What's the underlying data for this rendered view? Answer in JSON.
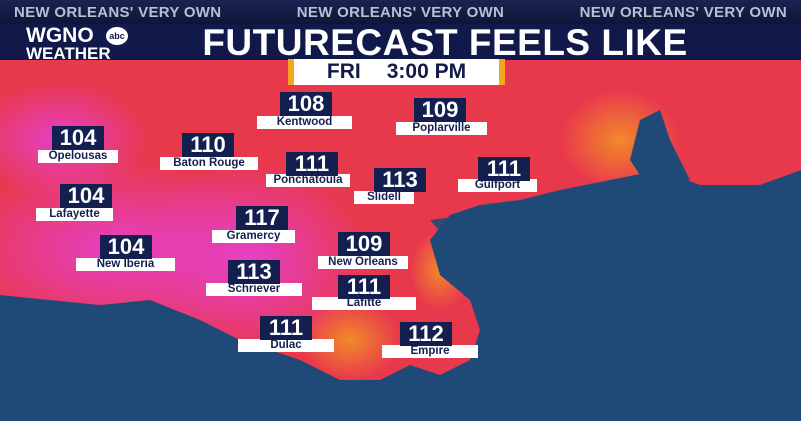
{
  "ticker": [
    "NEW ORLEANS' VERY OWN",
    "NEW ORLEANS' VERY OWN",
    "NEW ORLEANS' VERY OWN"
  ],
  "logo": {
    "top": "WGNO",
    "network": "abc",
    "bottom": "WEATHER"
  },
  "title": "FUTURECAST FEELS LIKE",
  "time": {
    "day": "FRI",
    "time": "3:00 PM"
  },
  "cities": [
    {
      "name": "Opelousas",
      "value": 104
    },
    {
      "name": "Baton Rouge",
      "value": 110
    },
    {
      "name": "Kentwood",
      "value": 108
    },
    {
      "name": "Poplarville",
      "value": 109
    },
    {
      "name": "Ponchatoula",
      "value": 111
    },
    {
      "name": "Slidell",
      "value": 113
    },
    {
      "name": "Gulfport",
      "value": 111
    },
    {
      "name": "Lafayette",
      "value": 104
    },
    {
      "name": "Gramercy",
      "value": 117
    },
    {
      "name": "New Orleans",
      "value": 109
    },
    {
      "name": "New Iberia",
      "value": 104
    },
    {
      "name": "Schriever",
      "value": 113
    },
    {
      "name": "Lafitte",
      "value": 111
    },
    {
      "name": "Dulac",
      "value": 111
    },
    {
      "name": "Empire",
      "value": 112
    }
  ]
}
